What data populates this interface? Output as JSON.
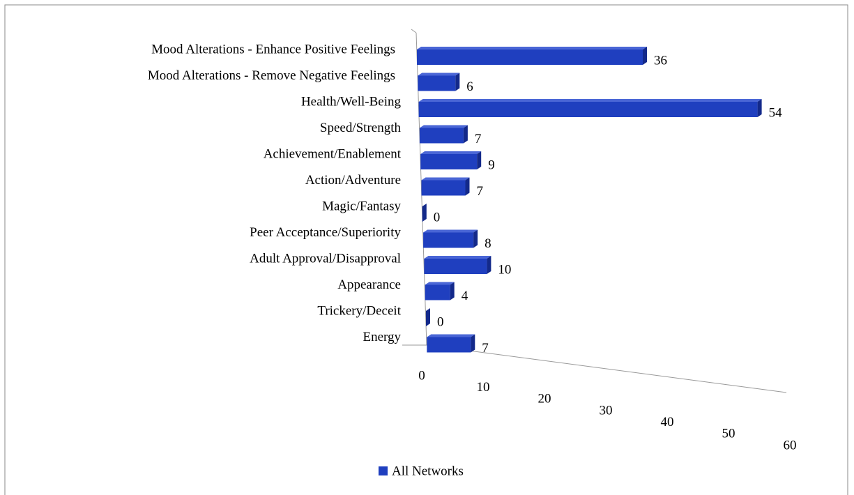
{
  "chart_data": {
    "type": "bar",
    "categories": [
      "Mood Alterations - Enhance Positive Feelings",
      "Mood Alterations - Remove Negative Feelings",
      "Health/Well-Being",
      "Speed/Strength",
      "Achievement/Enablement",
      "Action/Adventure",
      "Magic/Fantasy",
      "Peer Acceptance/Superiority",
      "Adult Approval/Disapproval",
      "Appearance",
      "Trickery/Deceit",
      "Energy"
    ],
    "series": [
      {
        "name": "All Networks",
        "color": "#1f3fbf",
        "values": [
          36,
          6,
          54,
          7,
          9,
          7,
          0,
          8,
          10,
          4,
          0,
          7
        ]
      }
    ],
    "xlim": [
      0,
      60
    ],
    "xticks": [
      0,
      10,
      20,
      30,
      40,
      50,
      60
    ],
    "legend": "bottom"
  }
}
